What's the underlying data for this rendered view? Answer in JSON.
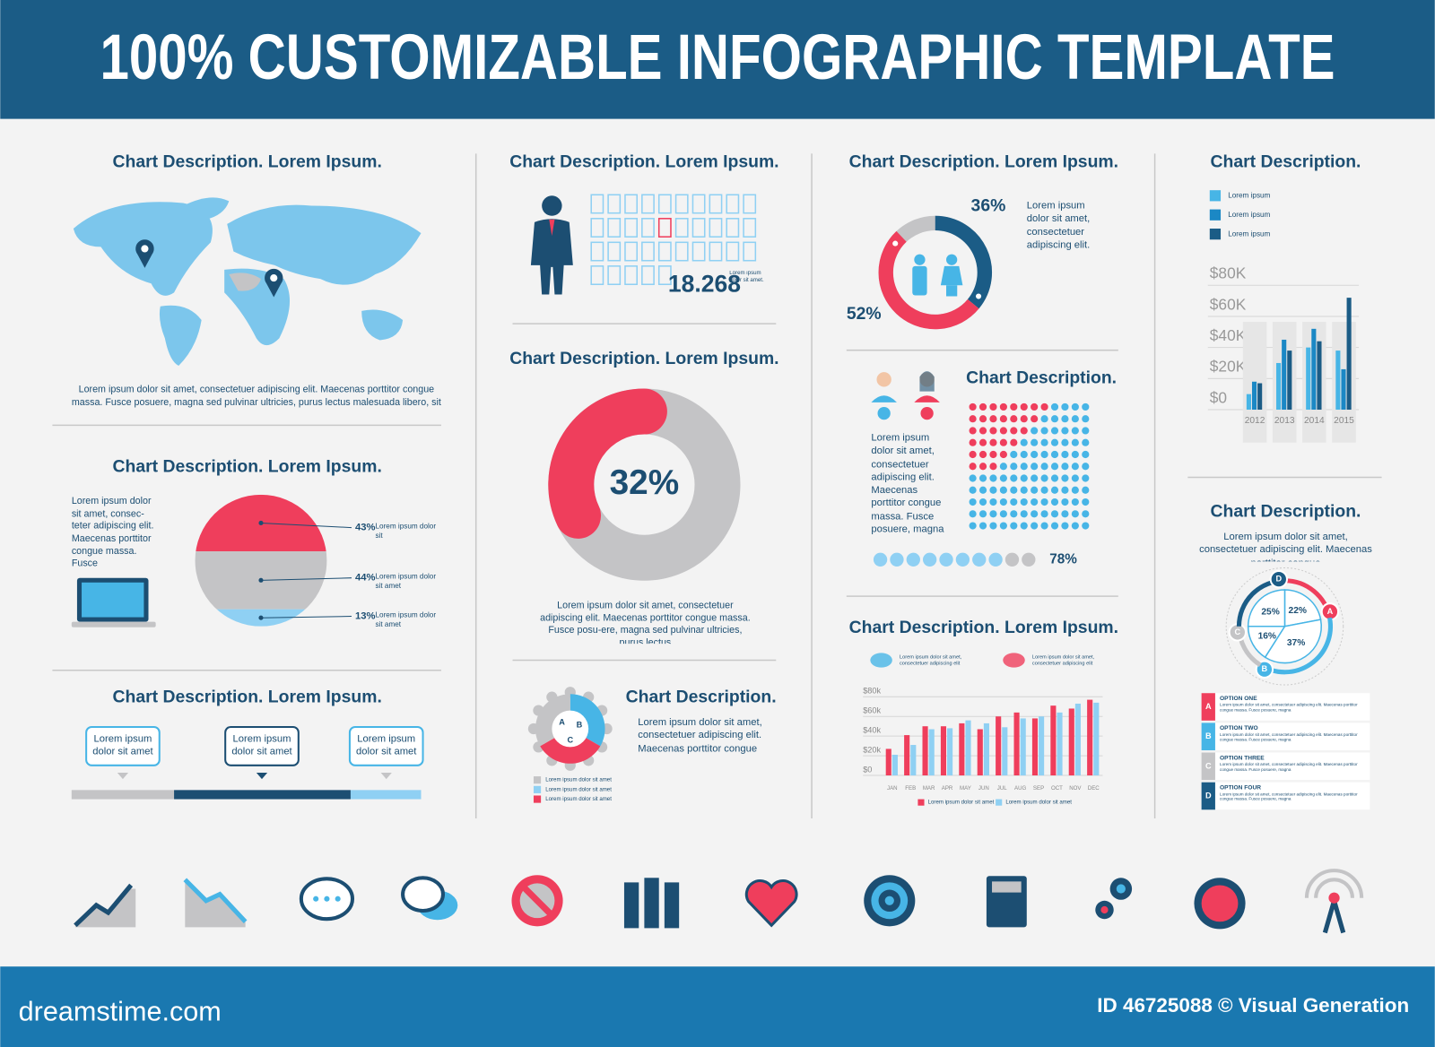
{
  "header": {
    "title": "100% CUSTOMIZABLE INFOGRAPHIC TEMPLATE"
  },
  "footer": {
    "site": "dreamstime.com",
    "credit": "ID 46725088 © Visual Generation"
  },
  "sections": {
    "map": {
      "title": "Chart Description. Lorem Ipsum.",
      "text": "Lorem ipsum dolor sit amet, consectetuer adipiscing elit. Maecenas porttitor congue massa. Fusce posuere, magna sed pulvinar ultricies, purus lectus malesuada libero, sit"
    },
    "pictogram": {
      "title": "Chart Description. Lorem Ipsum.",
      "count": "18.268",
      "note": "Lorem ipsum dolor sit amet."
    },
    "timeline": {
      "title": "Chart Description. Lorem Ipsum.",
      "callouts": [
        "Lorem ipsum dolor sit amet",
        "Lorem ipsum dolor sit amet",
        "Lorem ipsum dolor sit amet"
      ]
    },
    "gear": {
      "title": "Chart Description.",
      "text": "Lorem ipsum dolor sit amet, consectetuer adipiscing elit. Maecenas porttitor congue",
      "parts": [
        "A",
        "B",
        "C"
      ],
      "legend": [
        "Lorem ipsum dolor sit amet",
        "Lorem ipsum dolor sit amet",
        "Lorem ipsum dolor sit amet"
      ]
    },
    "options": [
      {
        "letter": "A",
        "name": "OPTION ONE",
        "text": "Lorem ipsum dolor sit amet, consectetuer adipiscing elit. Maecenas porttitor congue massa. Fusce posuere, magna"
      },
      {
        "letter": "B",
        "name": "OPTION TWO",
        "text": "Lorem ipsum dolor sit amet, consectetuer adipiscing elit. Maecenas porttitor congue massa. Fusce posuere, magna"
      },
      {
        "letter": "C",
        "name": "OPTION THREE",
        "text": "Lorem ipsum dolor sit amet, consectetuer adipiscing elit. Maecenas porttitor congue massa. Fusce posuere, magna"
      },
      {
        "letter": "D",
        "name": "OPTION FOUR",
        "text": "Lorem ipsum dolor sit amet, consectetuer adipiscing elit. Maecenas porttitor congue massa. Fusce posuere, magna"
      }
    ]
  },
  "chart_data": [
    {
      "type": "pie",
      "style": "bands",
      "title": "Chart Description. Lorem Ipsum.",
      "text": "Lorem ipsum dolor sit amet, consec-teter adipiscing elit. Maecenas porttitor congue massa. Fusce",
      "categories": [
        "Lorem ipsum dolor sit",
        "Lorem ipsum dolor sit amet",
        "Lorem ipsum dolor sit amet"
      ],
      "values": [
        43,
        44,
        13
      ],
      "value_labels": [
        "43%",
        "44%",
        "13%"
      ],
      "colors": [
        "#ef3e5c",
        "#c4c4c6",
        "#8fd0f3"
      ]
    },
    {
      "type": "donut",
      "clockwise": false,
      "title": "Chart Description. Lorem Ipsum.",
      "text": "Lorem ipsum dolor sit amet, consectetuer adipiscing elit. Maecenas porttitor congue massa. Fusce posu-ere, magna sed pulvinar ultricies, purus lectus",
      "values": [
        32
      ],
      "value_labels": [
        "32%"
      ],
      "colors": [
        "#ef3e5c"
      ],
      "track_color": "#c4c4c6"
    },
    {
      "type": "donut",
      "clockwise": true,
      "title": "Chart Description. Lorem Ipsum.",
      "text": "Lorem ipsum dolor sit amet, consectetuer adipiscing elit.",
      "values": [
        36,
        52
      ],
      "value_labels": [
        "36%",
        "52%"
      ],
      "colors": [
        "#1b5c86",
        "#ef3e5c"
      ],
      "track_color": "#c4c4c6"
    },
    {
      "type": "dots",
      "title": "Chart Description.",
      "text": "Lorem ipsum dolor sit amet, consectetuer adipiscing elit. Maecenas porttitor congue massa. Fusce posuere, magna",
      "values": [
        78
      ],
      "value_labels": [
        "78%"
      ],
      "colors": [
        "#8fd0f3"
      ],
      "track_color": "#c4c4c6"
    },
    {
      "type": "bar",
      "title": "Chart Description. Lorem Ipsum.",
      "notes": [
        "Lorem ipsum dolor sit amet, consectetuer adipiscing elit",
        "Lorem ipsum dolor sit amet, consectetuer adipiscing elit"
      ],
      "categories": [
        "JAN",
        "FEB",
        "MAR",
        "APR",
        "MAY",
        "JUN",
        "JUL",
        "AUG",
        "SEP",
        "OCT",
        "NOV",
        "DEC"
      ],
      "series": [
        {
          "name": "Lorem ipsum dolor sit amet",
          "color": "#ef3e5c",
          "values": [
            27000,
            41000,
            50000,
            50000,
            53000,
            47000,
            60000,
            64000,
            58000,
            71000,
            68000,
            77000
          ]
        },
        {
          "name": "Lorem ipsum dolor sit amet",
          "color": "#8fd0f3",
          "values": [
            21000,
            31000,
            47000,
            48000,
            56000,
            53000,
            49000,
            58000,
            60000,
            64000,
            73000,
            74000
          ]
        }
      ],
      "ylim": [
        0,
        80000
      ],
      "yticks": [
        {
          "value": 0,
          "label": "$0"
        },
        {
          "value": 20000,
          "label": "$20k"
        },
        {
          "value": 40000,
          "label": "$40k"
        },
        {
          "value": 60000,
          "label": "$60k"
        },
        {
          "value": 80000,
          "label": "$80k"
        }
      ],
      "grid": true
    },
    {
      "type": "bar",
      "title": "Chart Description.",
      "categories": [
        "2012",
        "2013",
        "2014",
        "2015"
      ],
      "series": [
        {
          "name": "Lorem ipsum",
          "color": "#47b5e6",
          "values": [
            10000,
            30000,
            40000,
            38000
          ]
        },
        {
          "name": "Lorem ipsum",
          "color": "#1b88c5",
          "values": [
            18000,
            45000,
            52000,
            26000
          ]
        },
        {
          "name": "Lorem ipsum",
          "color": "#1b5c86",
          "values": [
            17000,
            38000,
            44000,
            72000
          ]
        }
      ],
      "ylim": [
        0,
        80000
      ],
      "yticks": [
        {
          "value": 0,
          "label": "$0"
        },
        {
          "value": 20000,
          "label": "$20K"
        },
        {
          "value": 40000,
          "label": "$40K"
        },
        {
          "value": 60000,
          "label": "$60K"
        },
        {
          "value": 80000,
          "label": "$80K"
        }
      ],
      "grid": true
    },
    {
      "type": "pie",
      "style": "ring",
      "title": "Chart Description.",
      "text": "Lorem ipsum dolor sit amet, consectetuer adipiscing elit. Maecenas porttitor congue",
      "categories": [
        "A",
        "B",
        "C",
        "D"
      ],
      "values": [
        22,
        37,
        16,
        25
      ],
      "value_labels": [
        "22%",
        "37%",
        "16%",
        "25%"
      ],
      "colors": [
        "#ef3e5c",
        "#47b5e6",
        "#c4c4c6",
        "#1b5c86"
      ]
    }
  ]
}
